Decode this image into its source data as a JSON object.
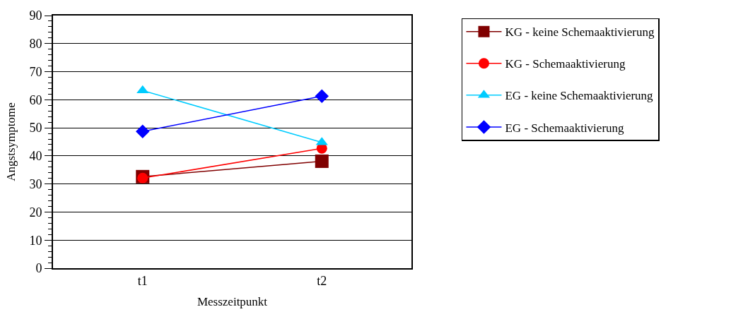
{
  "chart_data": {
    "type": "line",
    "xlabel": "Messzeitpunkt",
    "ylabel": "Angstsymptome",
    "categories": [
      "t1",
      "t2"
    ],
    "series": [
      {
        "name": "KG - keine Schemaaktivierung",
        "color": "#800000",
        "marker": "square",
        "values": [
          32.6,
          38.1
        ]
      },
      {
        "name": "KG - Schemaaktivierung",
        "color": "#ff0000",
        "marker": "circle",
        "values": [
          32.1,
          42.7
        ]
      },
      {
        "name": "EG - keine Schemaaktivierung",
        "color": "#00ccff",
        "marker": "triangle",
        "values": [
          63.3,
          44.8
        ]
      },
      {
        "name": "EG - Schemaaktivierung",
        "color": "#0000ff",
        "marker": "diamond",
        "values": [
          48.7,
          61.3
        ]
      }
    ],
    "ylim": [
      0,
      90
    ],
    "yticks": [
      0,
      10,
      20,
      30,
      40,
      50,
      60,
      70,
      80,
      90
    ],
    "grid": "y",
    "legend": "right",
    "line_style": "solid"
  }
}
